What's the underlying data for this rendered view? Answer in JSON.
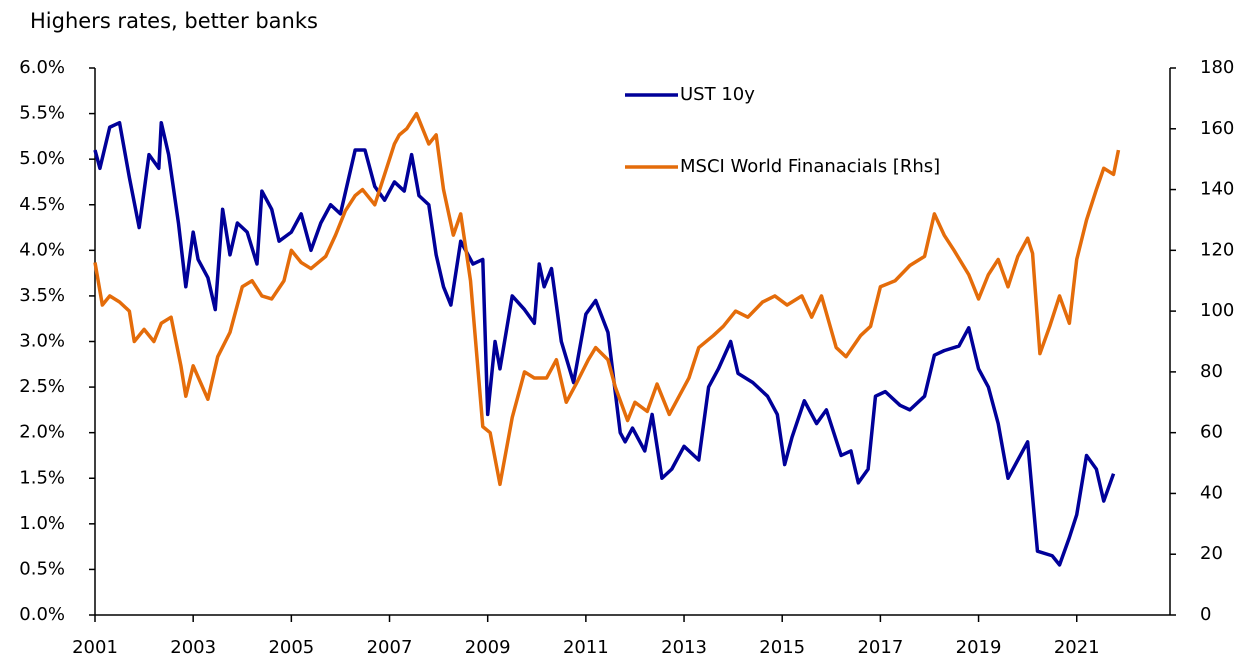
{
  "chart_data": {
    "type": "line",
    "title": "Highers rates, better banks",
    "xlim": [
      2001,
      2022.9
    ],
    "xticks": [
      2001,
      2003,
      2005,
      2007,
      2009,
      2011,
      2013,
      2015,
      2017,
      2019,
      2021
    ],
    "ylim": [
      0,
      6
    ],
    "yticks": [
      {
        "value": 0,
        "label": "0.0%"
      },
      {
        "value": 0.5,
        "label": "0.5%"
      },
      {
        "value": 1,
        "label": "1.0%"
      },
      {
        "value": 1.5,
        "label": "1.5%"
      },
      {
        "value": 2,
        "label": "2.0%"
      },
      {
        "value": 2.5,
        "label": "2.5%"
      },
      {
        "value": 3,
        "label": "3.0%"
      },
      {
        "value": 3.5,
        "label": "3.5%"
      },
      {
        "value": 4,
        "label": "4.0%"
      },
      {
        "value": 4.5,
        "label": "4.5%"
      },
      {
        "value": 5,
        "label": "5.0%"
      },
      {
        "value": 5.5,
        "label": "5.5%"
      },
      {
        "value": 6,
        "label": "6.0%"
      }
    ],
    "y2lim": [
      0,
      180
    ],
    "y2ticks": [
      0,
      20,
      40,
      60,
      80,
      100,
      120,
      140,
      160,
      180
    ],
    "series": [
      {
        "name": "UST 10y",
        "color": "#000099",
        "x": [
          2001.0,
          2001.1,
          2001.3,
          2001.5,
          2001.7,
          2001.9,
          2002.1,
          2002.3,
          2002.35,
          2002.5,
          2002.7,
          2002.85,
          2003.0,
          2003.1,
          2003.3,
          2003.45,
          2003.6,
          2003.75,
          2003.9,
          2004.1,
          2004.3,
          2004.4,
          2004.6,
          2004.75,
          2005.0,
          2005.2,
          2005.4,
          2005.6,
          2005.8,
          2006.0,
          2006.3,
          2006.5,
          2006.7,
          2006.9,
          2007.1,
          2007.3,
          2007.45,
          2007.6,
          2007.8,
          2007.95,
          2008.1,
          2008.25,
          2008.45,
          2008.7,
          2008.9,
          2009.0,
          2009.15,
          2009.25,
          2009.5,
          2009.75,
          2009.95,
          2010.05,
          2010.15,
          2010.3,
          2010.5,
          2010.75,
          2011.0,
          2011.2,
          2011.45,
          2011.7,
          2011.8,
          2011.95,
          2012.2,
          2012.35,
          2012.55,
          2012.75,
          2013.0,
          2013.3,
          2013.5,
          2013.7,
          2013.95,
          2014.1,
          2014.4,
          2014.7,
          2014.9,
          2015.05,
          2015.2,
          2015.45,
          2015.7,
          2015.9,
          2016.2,
          2016.4,
          2016.55,
          2016.75,
          2016.9,
          2017.1,
          2017.4,
          2017.6,
          2017.9,
          2018.1,
          2018.3,
          2018.6,
          2018.8,
          2019.0,
          2019.2,
          2019.4,
          2019.6,
          2019.8,
          2020.0,
          2020.2,
          2020.5,
          2020.65,
          2020.85,
          2021.0,
          2021.2,
          2021.4,
          2021.55,
          2021.75
        ],
        "values": [
          5.1,
          4.9,
          5.35,
          5.4,
          4.8,
          4.25,
          5.05,
          4.9,
          5.4,
          5.05,
          4.3,
          3.6,
          4.2,
          3.9,
          3.7,
          3.35,
          4.45,
          3.95,
          4.3,
          4.2,
          3.85,
          4.65,
          4.45,
          4.1,
          4.2,
          4.4,
          4.0,
          4.3,
          4.5,
          4.4,
          5.1,
          5.1,
          4.7,
          4.55,
          4.75,
          4.65,
          5.05,
          4.6,
          4.5,
          3.95,
          3.6,
          3.4,
          4.1,
          3.85,
          3.9,
          2.2,
          3.0,
          2.7,
          3.5,
          3.35,
          3.2,
          3.85,
          3.6,
          3.8,
          3.0,
          2.55,
          3.3,
          3.45,
          3.1,
          2.0,
          1.9,
          2.05,
          1.8,
          2.2,
          1.5,
          1.6,
          1.85,
          1.7,
          2.5,
          2.7,
          3.0,
          2.65,
          2.55,
          2.4,
          2.2,
          1.65,
          1.95,
          2.35,
          2.1,
          2.25,
          1.75,
          1.8,
          1.45,
          1.6,
          2.4,
          2.45,
          2.3,
          2.25,
          2.4,
          2.85,
          2.9,
          2.95,
          3.15,
          2.7,
          2.5,
          2.1,
          1.5,
          1.7,
          1.9,
          0.7,
          0.65,
          0.55,
          0.85,
          1.1,
          1.75,
          1.6,
          1.25,
          1.55
        ]
      },
      {
        "name": "MSCI World Finanacials [Rhs]",
        "color": "#e46c0a",
        "axis": "y2",
        "x": [
          2001.0,
          2001.15,
          2001.3,
          2001.5,
          2001.7,
          2001.8,
          2002.0,
          2002.2,
          2002.35,
          2002.55,
          2002.75,
          2002.85,
          2003.0,
          2003.3,
          2003.5,
          2003.75,
          2004.0,
          2004.2,
          2004.4,
          2004.6,
          2004.85,
          2005.0,
          2005.2,
          2005.4,
          2005.7,
          2005.9,
          2006.1,
          2006.3,
          2006.45,
          2006.7,
          2006.9,
          2007.1,
          2007.2,
          2007.35,
          2007.55,
          2007.8,
          2007.95,
          2008.1,
          2008.3,
          2008.45,
          2008.65,
          2008.9,
          2009.05,
          2009.25,
          2009.5,
          2009.75,
          2009.95,
          2010.2,
          2010.4,
          2010.6,
          2010.8,
          2011.05,
          2011.2,
          2011.45,
          2011.6,
          2011.85,
          2012.0,
          2012.25,
          2012.45,
          2012.7,
          2012.9,
          2013.1,
          2013.3,
          2013.6,
          2013.8,
          2014.05,
          2014.3,
          2014.6,
          2014.85,
          2015.1,
          2015.4,
          2015.6,
          2015.8,
          2016.1,
          2016.3,
          2016.6,
          2016.8,
          2017.0,
          2017.3,
          2017.6,
          2017.9,
          2018.1,
          2018.3,
          2018.5,
          2018.8,
          2019.0,
          2019.2,
          2019.4,
          2019.6,
          2019.8,
          2020.0,
          2020.1,
          2020.25,
          2020.45,
          2020.65,
          2020.85,
          2021.0,
          2021.2,
          2021.4,
          2021.55,
          2021.75,
          2021.85
        ],
        "values": [
          116,
          102,
          105,
          103,
          100,
          90,
          94,
          90,
          96,
          98,
          82,
          72,
          82,
          71,
          85,
          93,
          108,
          110,
          105,
          104,
          110,
          120,
          116,
          114,
          118,
          125,
          133,
          138,
          140,
          135,
          145,
          155,
          158,
          160,
          165,
          155,
          158,
          140,
          125,
          132,
          110,
          62,
          60,
          43,
          65,
          80,
          78,
          78,
          84,
          70,
          76,
          84,
          88,
          84,
          75,
          64,
          70,
          67,
          76,
          66,
          72,
          78,
          88,
          92,
          95,
          100,
          98,
          103,
          105,
          102,
          105,
          98,
          105,
          88,
          85,
          92,
          95,
          108,
          110,
          115,
          118,
          132,
          125,
          120,
          112,
          104,
          112,
          117,
          108,
          118,
          124,
          119,
          86,
          95,
          105,
          96,
          117,
          130,
          140,
          147,
          145,
          153
        ]
      }
    ]
  }
}
